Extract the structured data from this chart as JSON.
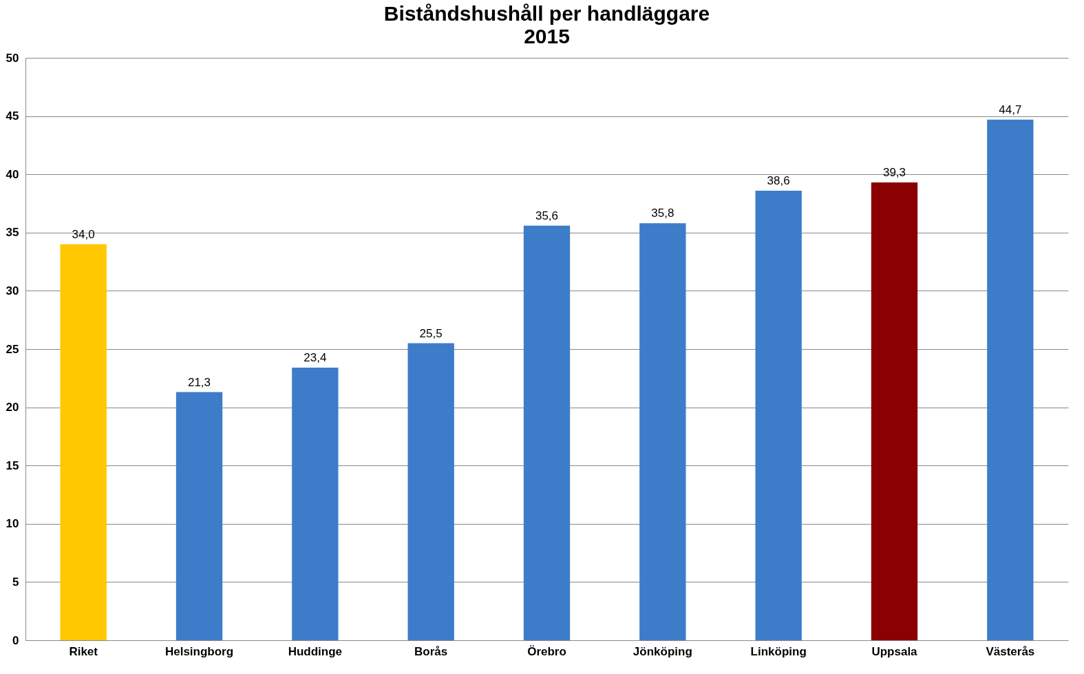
{
  "chart_data": {
    "type": "bar",
    "title": "Biståndshushåll per handläggare",
    "subtitle": "2015",
    "categories": [
      "Riket",
      "Helsingborg",
      "Huddinge",
      "Borås",
      "Örebro",
      "Jönköping",
      "Linköping",
      "Uppsala",
      "Västerås"
    ],
    "values": [
      34.0,
      21.3,
      23.4,
      25.5,
      35.6,
      35.8,
      38.6,
      39.3,
      44.7
    ],
    "colors": [
      "#ffc800",
      "#3d7cc9",
      "#3d7cc9",
      "#3d7cc9",
      "#3d7cc9",
      "#3d7cc9",
      "#3d7cc9",
      "#8b0000",
      "#3d7cc9"
    ],
    "value_labels": [
      "34,0",
      "21,3",
      "23,4",
      "25,5",
      "35,6",
      "35,8",
      "38,6",
      "39,3",
      "44,7"
    ],
    "ylim": [
      0,
      50
    ],
    "yticks": [
      0,
      5,
      10,
      15,
      20,
      25,
      30,
      35,
      40,
      45,
      50
    ],
    "grid": "y"
  }
}
